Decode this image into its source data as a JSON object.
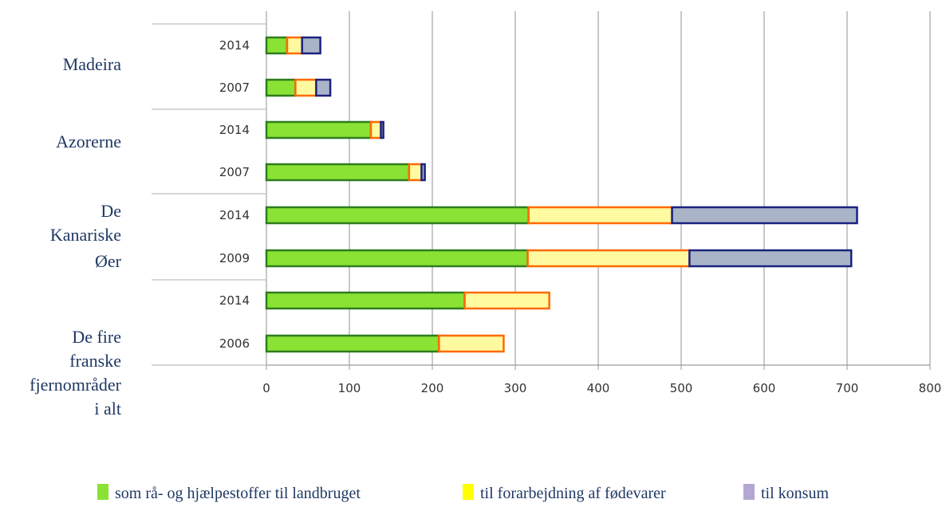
{
  "chart_data": {
    "type": "bar",
    "orientation": "horizontal",
    "stacked": true,
    "xlim": [
      0,
      800
    ],
    "x_ticks": [
      "0",
      "100",
      "200",
      "300",
      "400",
      "500",
      "600",
      "700",
      "800"
    ],
    "grid": "vertical",
    "legend_position": "bottom",
    "groups": [
      {
        "label": "Madeira",
        "rows": [
          {
            "year": "2014",
            "values": [
              25,
              18,
              22
            ]
          },
          {
            "year": "2007",
            "values": [
              35,
              25,
              17
            ]
          }
        ]
      },
      {
        "label": "Azorerne",
        "rows": [
          {
            "year": "2014",
            "values": [
              126,
              12,
              3
            ]
          },
          {
            "year": "2007",
            "values": [
              172,
              15,
              4
            ]
          }
        ]
      },
      {
        "label": "De Kanariske Øer",
        "rows": [
          {
            "year": "2014",
            "values": [
              316,
              173,
              223
            ]
          },
          {
            "year": "2009",
            "values": [
              315,
              195,
              195
            ]
          }
        ]
      },
      {
        "label": "De fire franske fjernområder i alt",
        "rows": [
          {
            "year": "2014",
            "values": [
              239,
              102,
              0
            ]
          },
          {
            "year": "2006",
            "values": [
              208,
              78,
              0
            ]
          }
        ]
      }
    ],
    "series": [
      {
        "name": "som rå- og hjælpestoffer til landbruget",
        "color": "#8ae234",
        "border": "#2e7d1e",
        "legend_color": "#8ae234"
      },
      {
        "name": "til forarbejdning af fødevarer",
        "color": "#fff9a0",
        "border": "#ff6a00",
        "legend_color": "#ffff00"
      },
      {
        "name": "til konsum",
        "color": "#aab4c8",
        "border": "#1a237e",
        "legend_color": "#b4a7d6"
      }
    ]
  }
}
